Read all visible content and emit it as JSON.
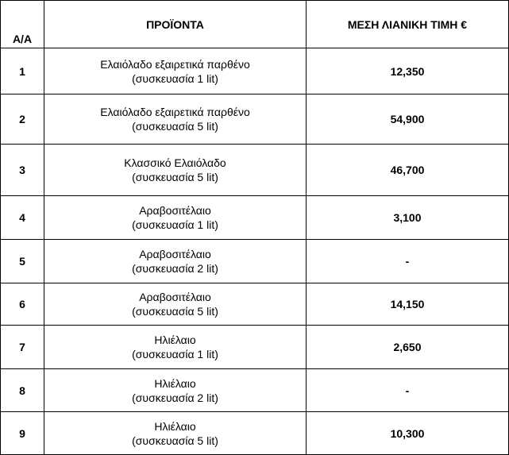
{
  "headers": {
    "index": "Α/Α",
    "product": "ΠΡΟΪΟΝΤΑ",
    "price": "ΜΕΣΗ ΛΙΑΝΙΚΗ ΤΙΜΗ  €"
  },
  "rows": [
    {
      "index": "1",
      "name": "Ελαιόλαδο εξαιρετικά παρθένο",
      "pack": "(συσκευασία 1 lit)",
      "price": "12,350"
    },
    {
      "index": "2",
      "name": "Ελαιόλαδο εξαιρετικά παρθένο",
      "pack": "(συσκευασία 5 lit)",
      "price": "54,900"
    },
    {
      "index": "3",
      "name": "Κλασσικό Ελαιόλαδο",
      "pack": "(συσκευασία 5 lit)",
      "price": "46,700"
    },
    {
      "index": "4",
      "name": "Αραβοσιτέλαιο",
      "pack": "(συσκευασία 1 lit)",
      "price": "3,100"
    },
    {
      "index": "5",
      "name": "Αραβοσιτέλαιο",
      "pack": "(συσκευασία 2 lit)",
      "price": "-"
    },
    {
      "index": "6",
      "name": "Αραβοσιτέλαιο",
      "pack": "(συσκευασία 5 lit)",
      "price": "14,150"
    },
    {
      "index": "7",
      "name": "Ηλιέλαιο",
      "pack": "(συσκευασία 1 lit)",
      "price": "2,650"
    },
    {
      "index": "8",
      "name": "Ηλιέλαιο",
      "pack": "(συσκευασία 2 lit)",
      "price": "-"
    },
    {
      "index": "9",
      "name": "Ηλιέλαιο",
      "pack": "(συσκευασία 5 lit)",
      "price": "10,300"
    }
  ]
}
